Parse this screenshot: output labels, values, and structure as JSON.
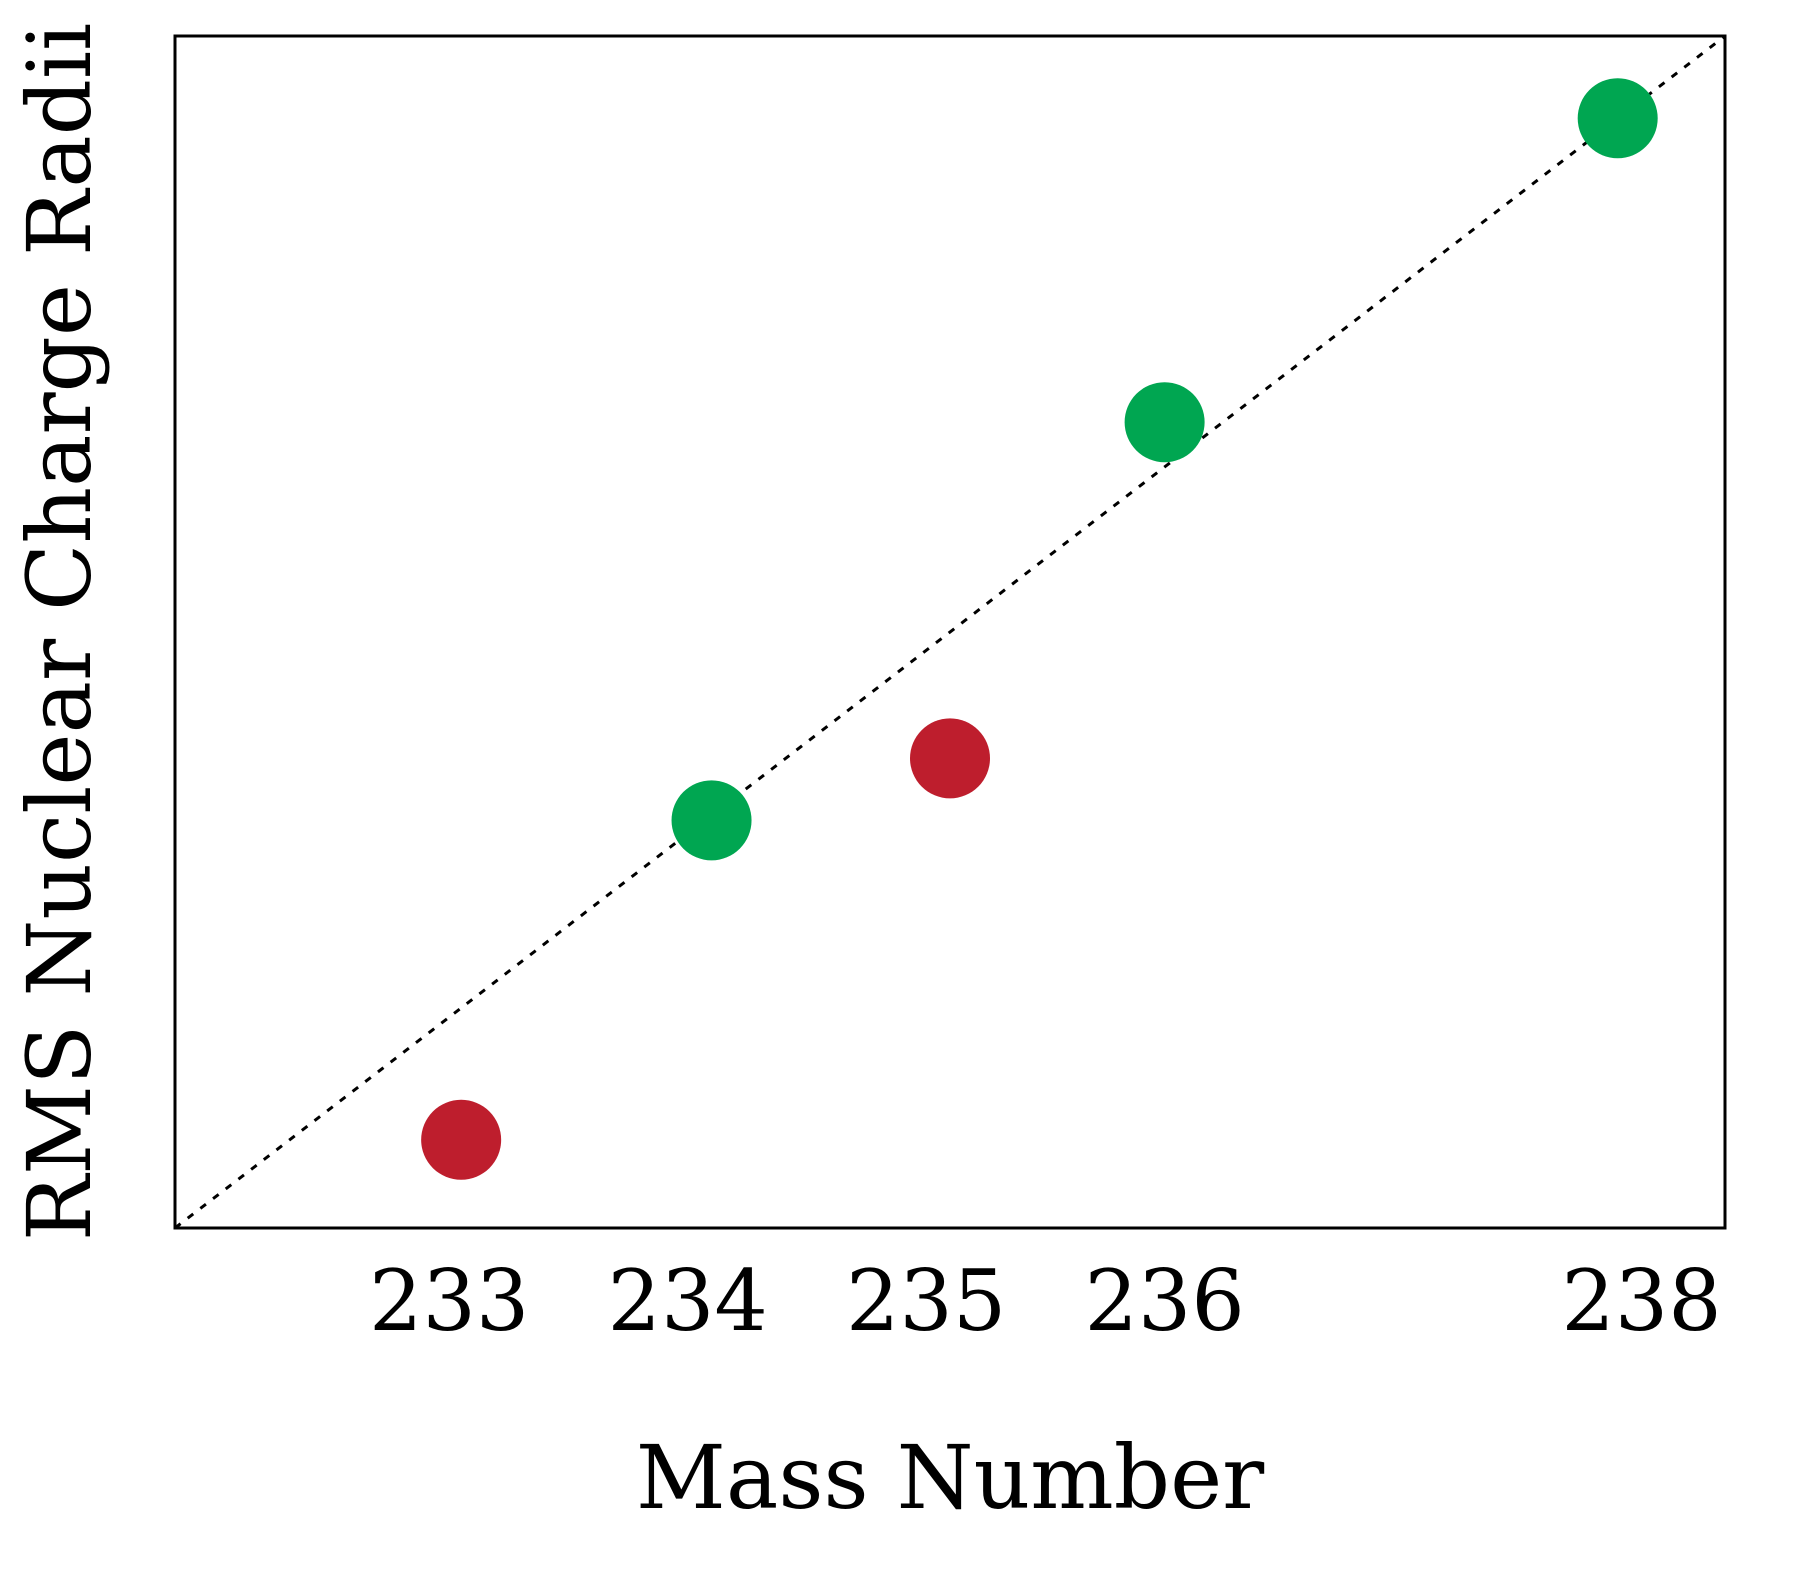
{
  "chart_data": {
    "type": "scatter",
    "title": "",
    "xlabel": "Mass Number",
    "ylabel": "RMS Nuclear Charge Radii",
    "x_ticks": [
      "233",
      "234",
      "235",
      "236",
      "238"
    ],
    "xlim": [
      231.85,
      238.35
    ],
    "ylim": [
      0,
      1
    ],
    "y_tick_labels_shown": false,
    "grid": false,
    "legend": "none",
    "points": [
      {
        "x": 233.05,
        "y": 0.074,
        "color": "#be1e2d"
      },
      {
        "x": 234.1,
        "y": 0.342,
        "color": "#00a651"
      },
      {
        "x": 235.1,
        "y": 0.394,
        "color": "#be1e2d"
      },
      {
        "x": 236.0,
        "y": 0.676,
        "color": "#00a651"
      },
      {
        "x": 237.9,
        "y": 0.931,
        "color": "#00a651"
      }
    ],
    "reference_line": {
      "style": "dotted",
      "color": "#000000",
      "from": [
        231.85,
        0
      ],
      "to": [
        238.35,
        1
      ]
    },
    "colors": {
      "accent_green": "#00a651",
      "accent_red": "#be1e2d"
    }
  }
}
